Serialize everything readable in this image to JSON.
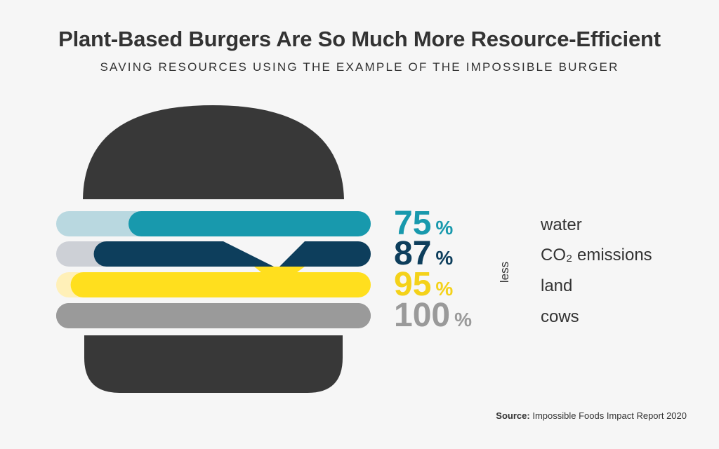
{
  "title": "Plant-Based Burgers Are So Much More Resource-Efficient",
  "subtitle": "SAVING RESOURCES USING THE EXAMPLE OF THE IMPOSSIBLE BURGER",
  "source": {
    "label": "Source:",
    "text": "Impossible Foods Impact Report 2020"
  },
  "chart_data": {
    "type": "bar",
    "categories": [
      "water",
      "CO₂ emissions",
      "land",
      "cows"
    ],
    "values": [
      75,
      87,
      95,
      100
    ],
    "unit": "%",
    "value_suffix_label": "less",
    "colors": [
      "#1899ad",
      "#0d3e5c",
      "#ffdf1e",
      "#9a9a9a"
    ],
    "track_colors": [
      "#b9d8e0",
      "#cdd0d6",
      "#fff0b8",
      "#9a9a9a"
    ],
    "bun_color": "#383838",
    "ylim": [
      0,
      100
    ]
  }
}
